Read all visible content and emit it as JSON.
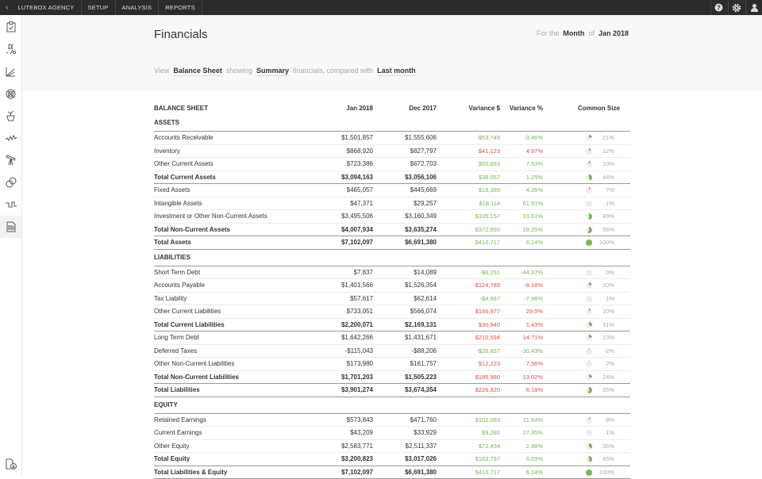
{
  "topbar": {
    "items": [
      "LUTEBOX AGENCY",
      "SETUP",
      "ANALYSIS",
      "REPORTS"
    ]
  },
  "header": {
    "title": "Financials",
    "for_the": "For the",
    "period_type": "Month",
    "of": "of",
    "period": "Jan 2018"
  },
  "view": {
    "view": "View",
    "report": "Balance Sheet",
    "showing": "showing",
    "mode": "Summary",
    "compared": "financials, compared with",
    "compare_to": "Last month"
  },
  "colors": {
    "positive": "#7ab55c",
    "negative": "#d9534f",
    "pie_bg": "#eeeeee"
  },
  "table": {
    "columns": [
      "BALANCE SHEET",
      "Jan 2018",
      "Dec 2017",
      "Variance $",
      "Variance %",
      "Common Size"
    ],
    "rows": [
      {
        "type": "section",
        "label": "ASSETS"
      },
      {
        "type": "row",
        "label": "Accounts Receivable",
        "jan": "$1,501,857",
        "dec": "$1,555,606",
        "var": "-$53,749",
        "varp": "-3.46%",
        "good": true,
        "cs": "21%",
        "csv": 21
      },
      {
        "type": "row",
        "label": "Inventory",
        "jan": "$868,920",
        "dec": "$827,797",
        "var": "$41,123",
        "varp": "4.97%",
        "good": false,
        "cs": "12%",
        "csv": 12
      },
      {
        "type": "row",
        "label": "Other Current Assets",
        "jan": "$723,386",
        "dec": "$672,703",
        "var": "$50,683",
        "varp": "7.53%",
        "good": true,
        "cs": "10%",
        "csv": 10
      },
      {
        "type": "total",
        "label": "Total Current Assets",
        "jan": "$3,094,163",
        "dec": "$3,056,106",
        "var": "$38,057",
        "varp": "1.25%",
        "good": true,
        "cs": "44%",
        "csv": 44
      },
      {
        "type": "row",
        "label": "Fixed Assets",
        "jan": "$465,057",
        "dec": "$445,669",
        "var": "$19,389",
        "varp": "4.35%",
        "good": true,
        "cs": "7%",
        "csv": 7
      },
      {
        "type": "row",
        "label": "Intangible Assets",
        "jan": "$47,371",
        "dec": "$29,257",
        "var": "$18,114",
        "varp": "61.91%",
        "good": true,
        "cs": "1%",
        "csv": 1
      },
      {
        "type": "row",
        "label": "Investment or Other Non-Current Assets",
        "jan": "$3,495,506",
        "dec": "$3,160,349",
        "var": "$335,157",
        "varp": "10.61%",
        "good": true,
        "cs": "49%",
        "csv": 49
      },
      {
        "type": "total",
        "label": "Total Non-Current Assets",
        "jan": "$4,007,934",
        "dec": "$3,635,274",
        "var": "$372,660",
        "varp": "10.25%",
        "good": true,
        "cs": "56%",
        "csv": 56
      },
      {
        "type": "total",
        "label": "Total Assets",
        "jan": "$7,102,097",
        "dec": "$6,691,380",
        "var": "$410,717",
        "varp": "6.14%",
        "good": true,
        "cs": "100%",
        "csv": 100
      },
      {
        "type": "section",
        "label": "LIABILITIES"
      },
      {
        "type": "row",
        "label": "Short Term Debt",
        "jan": "$7,837",
        "dec": "$14,089",
        "var": "-$6,251",
        "varp": "-44.37%",
        "good": true,
        "cs": "0%",
        "csv": 0
      },
      {
        "type": "row",
        "label": "Accounts Payable",
        "jan": "$1,401,566",
        "dec": "$1,526,354",
        "var": "-$124,789",
        "varp": "-8.18%",
        "good": false,
        "cs": "20%",
        "csv": 20
      },
      {
        "type": "row",
        "label": "Tax Liability",
        "jan": "$57,617",
        "dec": "$62,614",
        "var": "-$4,997",
        "varp": "-7.98%",
        "good": true,
        "cs": "1%",
        "csv": 1
      },
      {
        "type": "row",
        "label": "Other Current Liabilities",
        "jan": "$733,051",
        "dec": "$566,074",
        "var": "$166,977",
        "varp": "29.5%",
        "good": false,
        "cs": "10%",
        "csv": 10
      },
      {
        "type": "total",
        "label": "Total Current Liabilities",
        "jan": "$2,200,071",
        "dec": "$2,169,131",
        "var": "$30,940",
        "varp": "1.43%",
        "good": false,
        "cs": "31%",
        "csv": 31
      },
      {
        "type": "row",
        "label": "Long Term Debt",
        "jan": "$1,642,266",
        "dec": "$1,431,671",
        "var": "$210,594",
        "varp": "14.71%",
        "good": false,
        "cs": "23%",
        "csv": 23
      },
      {
        "type": "row",
        "label": "Deferred Taxes",
        "jan": "-$115,043",
        "dec": "-$88,206",
        "var": "-$26,837",
        "varp": "-30.43%",
        "good": true,
        "cs": "-2%",
        "csv": -2
      },
      {
        "type": "row",
        "label": "Other Non-Current Liabilities",
        "jan": "$173,980",
        "dec": "$161,757",
        "var": "$12,223",
        "varp": "7.56%",
        "good": false,
        "cs": "2%",
        "csv": 2
      },
      {
        "type": "total",
        "label": "Total Non-Current Liabilities",
        "jan": "$1,701,203",
        "dec": "$1,505,223",
        "var": "$195,980",
        "varp": "13.02%",
        "good": false,
        "cs": "24%",
        "csv": 24
      },
      {
        "type": "total",
        "label": "Total Liabilities",
        "jan": "$3,901,274",
        "dec": "$3,674,354",
        "var": "$226,920",
        "varp": "6.18%",
        "good": false,
        "cs": "55%",
        "csv": 55
      },
      {
        "type": "section",
        "label": "EQUITY"
      },
      {
        "type": "row",
        "label": "Retained Earnings",
        "jan": "$573,843",
        "dec": "$471,760",
        "var": "$102,083",
        "varp": "21.64%",
        "good": true,
        "cs": "8%",
        "csv": 8
      },
      {
        "type": "row",
        "label": "Current Earnings",
        "jan": "$43,209",
        "dec": "$33,929",
        "var": "$9,280",
        "varp": "27.35%",
        "good": true,
        "cs": "1%",
        "csv": 1
      },
      {
        "type": "row",
        "label": "Other Equity",
        "jan": "$2,583,771",
        "dec": "$2,511,337",
        "var": "$72,434",
        "varp": "2.88%",
        "good": true,
        "cs": "36%",
        "csv": 36
      },
      {
        "type": "total",
        "label": "Total Equity",
        "jan": "$3,200,823",
        "dec": "$3,017,026",
        "var": "$183,797",
        "varp": "6.09%",
        "good": true,
        "cs": "45%",
        "csv": 45
      },
      {
        "type": "total",
        "label": "Total Liabilities & Equity",
        "jan": "$7,102,097",
        "dec": "$6,691,380",
        "var": "$410,717",
        "varp": "6.14%",
        "good": true,
        "cs": "100%",
        "csv": 100
      }
    ]
  }
}
